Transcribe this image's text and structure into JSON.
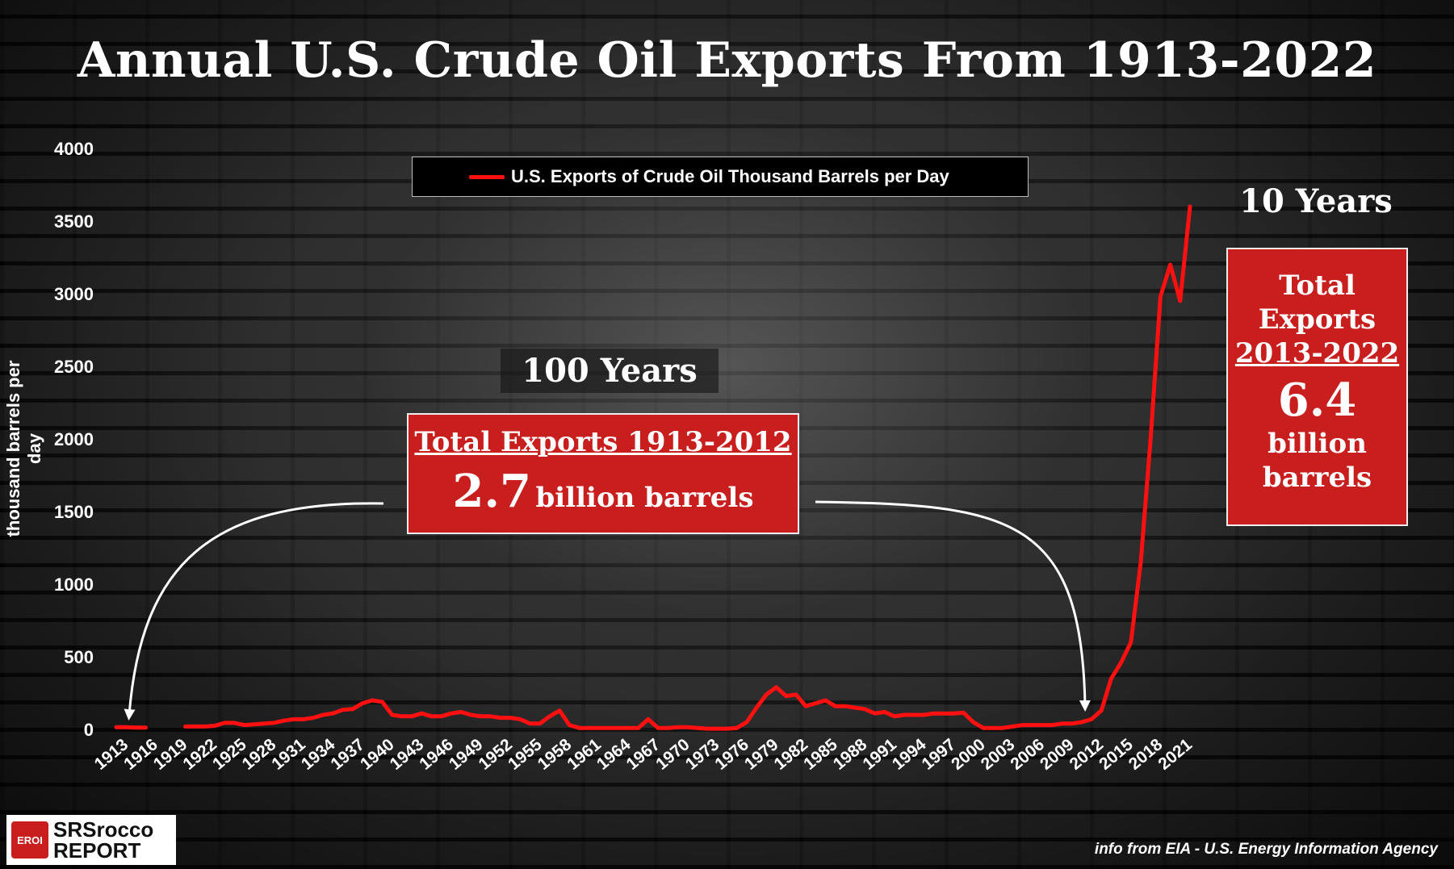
{
  "title": "Annual U.S. Crude Oil Exports From 1913-2022",
  "legend_label": "U.S. Exports of Crude Oil Thousand Barrels per Day",
  "ylabel": "thousand  barrels  per  day",
  "annotations": {
    "hundred_years": "100 Years",
    "ten_years": "10 Years",
    "left_box": {
      "heading": "Total Exports 1913-2012",
      "value": "2.7",
      "unit": "billion barrels"
    },
    "right_box": {
      "line1": "Total",
      "line2": "Exports",
      "line3": "2013-2022",
      "value": "6.4",
      "unit1": "billion",
      "unit2": "barrels"
    }
  },
  "logo": {
    "mark": "EROI",
    "line1": "SRSrocco",
    "line2": "REPORT"
  },
  "source": "info from EIA - U.S. Energy Information Agency",
  "colors": {
    "line": "#ff1010",
    "box": "#c81e1e",
    "text": "#ffffff"
  },
  "chart_data": {
    "type": "line",
    "title": "Annual U.S. Crude Oil Exports From 1913-2022",
    "xlabel": "",
    "ylabel": "thousand  barrels  per  day",
    "ylim": [
      0,
      4000
    ],
    "yticks": [
      0,
      500,
      1000,
      1500,
      2000,
      2500,
      3000,
      3500,
      4000
    ],
    "xtick_labels": [
      "1913",
      "1916",
      "1919",
      "1922",
      "1925",
      "1928",
      "1931",
      "1934",
      "1937",
      "1940",
      "1943",
      "1946",
      "1949",
      "1952",
      "1955",
      "1958",
      "1961",
      "1964",
      "1967",
      "1970",
      "1973",
      "1976",
      "1979",
      "1982",
      "1985",
      "1988",
      "1991",
      "1994",
      "1997",
      "2000",
      "2003",
      "2006",
      "2009",
      "2012",
      "2015",
      "2018",
      "2021"
    ],
    "grid": false,
    "legend_position": "top-center",
    "series": [
      {
        "name": "U.S. Exports of Crude Oil Thousand Barrels per Day",
        "x": [
          1913,
          1914,
          1915,
          1916,
          1917,
          1918,
          1919,
          1920,
          1921,
          1922,
          1923,
          1924,
          1925,
          1926,
          1927,
          1928,
          1929,
          1930,
          1931,
          1932,
          1933,
          1934,
          1935,
          1936,
          1937,
          1938,
          1939,
          1940,
          1941,
          1942,
          1943,
          1944,
          1945,
          1946,
          1947,
          1948,
          1949,
          1950,
          1951,
          1952,
          1953,
          1954,
          1955,
          1956,
          1957,
          1958,
          1959,
          1960,
          1961,
          1962,
          1963,
          1964,
          1965,
          1966,
          1967,
          1968,
          1969,
          1970,
          1971,
          1972,
          1973,
          1974,
          1975,
          1976,
          1977,
          1978,
          1979,
          1980,
          1981,
          1982,
          1983,
          1984,
          1985,
          1986,
          1987,
          1988,
          1989,
          1990,
          1991,
          1992,
          1993,
          1994,
          1995,
          1996,
          1997,
          1998,
          1999,
          2000,
          2001,
          2002,
          2003,
          2004,
          2005,
          2006,
          2007,
          2008,
          2009,
          2010,
          2011,
          2012,
          2013,
          2014,
          2015,
          2016,
          2017,
          2018,
          2019,
          2020,
          2021,
          2022
        ],
        "values": [
          15,
          15,
          12,
          12,
          null,
          null,
          null,
          20,
          20,
          20,
          25,
          45,
          45,
          30,
          35,
          40,
          45,
          60,
          70,
          70,
          80,
          100,
          110,
          135,
          140,
          180,
          200,
          190,
          100,
          90,
          90,
          110,
          90,
          90,
          110,
          120,
          100,
          90,
          90,
          80,
          80,
          70,
          40,
          40,
          90,
          130,
          30,
          10,
          10,
          10,
          10,
          10,
          10,
          10,
          70,
          10,
          10,
          15,
          15,
          10,
          5,
          5,
          5,
          10,
          50,
          150,
          240,
          290,
          230,
          240,
          160,
          180,
          200,
          160,
          160,
          150,
          140,
          110,
          120,
          90,
          100,
          100,
          100,
          110,
          110,
          110,
          115,
          50,
          10,
          10,
          10,
          20,
          30,
          30,
          30,
          30,
          40,
          40,
          50,
          70,
          130,
          350,
          460,
          600,
          1150,
          2000,
          2980,
          3200,
          2950,
          3600
        ]
      }
    ]
  }
}
